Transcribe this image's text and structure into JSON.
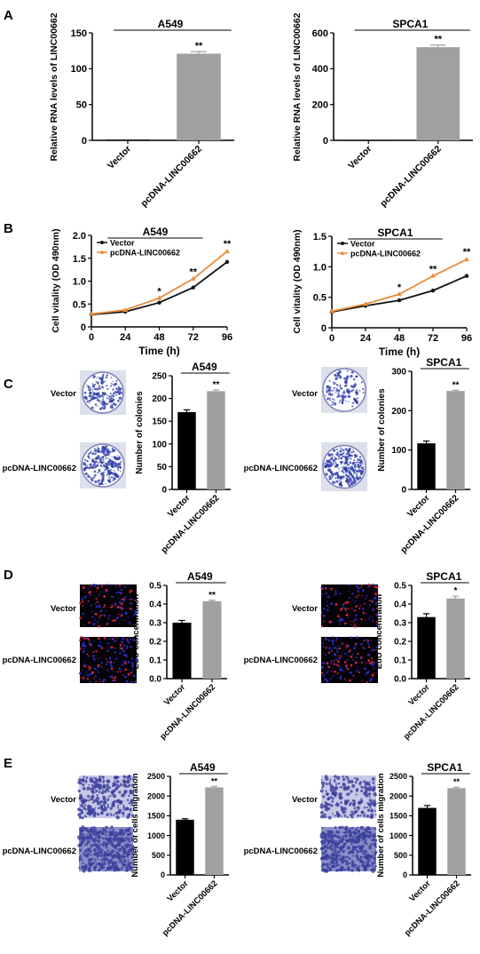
{
  "panels": {
    "A": "A",
    "B": "B",
    "C": "C",
    "D": "D",
    "E": "E"
  },
  "colors": {
    "vector_bar": "#000000",
    "pcdna_bar": "#a0a0a0",
    "vector_line": "#111111",
    "pcdna_line": "#e98b3a",
    "colony_plate": "#ffffff",
    "colony_dots": "#2a3aa8",
    "edu_bg": "#060308",
    "edu_dots_blue": "#2b2fd8",
    "edu_dots_red": "#e8283c",
    "transwell_bg": "#c6c8e6",
    "transwell_cells": "#3a3f9c"
  },
  "images": {
    "vector_label": "Vector",
    "pcdna_label": "pcDNA-LINC00662"
  },
  "chart_data": [
    {
      "id": "A_A549",
      "type": "bar",
      "panel": "A",
      "title": "A549",
      "ylabel": "Relative RNA levels of LINC00662",
      "categories": [
        "Vector",
        "pcDNA-LINC00662"
      ],
      "values": [
        1,
        121
      ],
      "errors": [
        0,
        3
      ],
      "ylim": [
        0,
        150
      ],
      "yticks": [
        "0",
        "50",
        "100",
        "150"
      ],
      "yticks_v": [
        0,
        50,
        100,
        150
      ],
      "annotations": [
        "",
        "**"
      ]
    },
    {
      "id": "A_SPCA1",
      "type": "bar",
      "panel": "A",
      "title": "SPCA1",
      "ylabel": "Relative RNA levels of LINC00662",
      "categories": [
        "Vector",
        "pcDNA-LINC00662"
      ],
      "values": [
        1,
        520
      ],
      "errors": [
        0,
        12
      ],
      "ylim": [
        0,
        600
      ],
      "yticks": [
        "0",
        "200",
        "400",
        "600"
      ],
      "yticks_v": [
        0,
        200,
        400,
        600
      ],
      "annotations": [
        "",
        "**"
      ]
    },
    {
      "id": "B_A549",
      "type": "line",
      "panel": "B",
      "title": "A549",
      "ylabel": "Cell vitality (OD 490nm)",
      "xlabel": "Time (h)",
      "x": [
        0,
        24,
        48,
        72,
        96
      ],
      "xticks": [
        "0",
        "24",
        "48",
        "72",
        "96"
      ],
      "ylim": [
        0,
        2.0
      ],
      "yticks": [
        "0",
        "0.5",
        "1.0",
        "1.5",
        "2.0"
      ],
      "yticks_v": [
        0,
        0.5,
        1.0,
        1.5,
        2.0
      ],
      "legend": "top-left",
      "series": [
        {
          "name": "Vector",
          "values": [
            0.27,
            0.33,
            0.53,
            0.86,
            1.42
          ],
          "errors": [
            0.01,
            0.01,
            0.02,
            0.02,
            0.04
          ]
        },
        {
          "name": "pcDNA-LINC00662",
          "values": [
            0.28,
            0.37,
            0.63,
            1.05,
            1.65
          ],
          "errors": [
            0.01,
            0.01,
            0.02,
            0.03,
            0.04
          ]
        }
      ],
      "annotations": [
        "",
        "",
        "*",
        "**",
        "**"
      ]
    },
    {
      "id": "B_SPCA1",
      "type": "line",
      "panel": "B",
      "title": "SPCA1",
      "ylabel": "Cell vitality (OD 490nm)",
      "xlabel": "Time (h)",
      "x": [
        0,
        24,
        48,
        72,
        96
      ],
      "xticks": [
        "0",
        "24",
        "48",
        "72",
        "96"
      ],
      "ylim": [
        0,
        1.5
      ],
      "yticks": [
        "0",
        "0.5",
        "1.0",
        "1.5"
      ],
      "yticks_v": [
        0,
        0.5,
        1.0,
        1.5
      ],
      "legend": "top-left",
      "series": [
        {
          "name": "Vector",
          "values": [
            0.26,
            0.36,
            0.45,
            0.61,
            0.85
          ],
          "errors": [
            0.01,
            0.01,
            0.01,
            0.02,
            0.03
          ]
        },
        {
          "name": "pcDNA-LINC00662",
          "values": [
            0.27,
            0.39,
            0.55,
            0.85,
            1.12
          ],
          "errors": [
            0.01,
            0.01,
            0.02,
            0.02,
            0.03
          ]
        }
      ],
      "annotations": [
        "",
        "",
        "*",
        "**",
        "**"
      ]
    },
    {
      "id": "C_A549",
      "type": "bar",
      "panel": "C",
      "title": "A549",
      "ylabel": "Number of colonies",
      "categories": [
        "Vector",
        "pcDNA-LINC00662"
      ],
      "values": [
        170,
        216
      ],
      "errors": [
        5,
        3
      ],
      "ylim": [
        0,
        250
      ],
      "yticks": [
        "0",
        "50",
        "100",
        "150",
        "200",
        "250"
      ],
      "yticks_v": [
        0,
        50,
        100,
        150,
        200,
        250
      ],
      "annotations": [
        "",
        "**"
      ]
    },
    {
      "id": "C_SPCA1",
      "type": "bar",
      "panel": "C",
      "title": "SPCA1",
      "ylabel": "Number of colonies",
      "categories": [
        "Vector",
        "pcDNA-LINC00662"
      ],
      "values": [
        117,
        250
      ],
      "errors": [
        6,
        2
      ],
      "ylim": [
        0,
        300
      ],
      "yticks": [
        "0",
        "100",
        "200",
        "300"
      ],
      "yticks_v": [
        0,
        100,
        200,
        300
      ],
      "annotations": [
        "",
        "**"
      ]
    },
    {
      "id": "D_A549",
      "type": "bar",
      "panel": "D",
      "title": "A549",
      "ylabel": "EdU concentration",
      "categories": [
        "Vector",
        "pcDNA-LINC00662"
      ],
      "values": [
        0.3,
        0.415
      ],
      "errors": [
        0.012,
        0.005
      ],
      "ylim": [
        0,
        0.5
      ],
      "yticks": [
        "0.0",
        "0.1",
        "0.2",
        "0.3",
        "0.4",
        "0.5"
      ],
      "yticks_v": [
        0,
        0.1,
        0.2,
        0.3,
        0.4,
        0.5
      ],
      "annotations": [
        "",
        "**"
      ]
    },
    {
      "id": "D_SPCA1",
      "type": "bar",
      "panel": "D",
      "title": "SPCA1",
      "ylabel": "EdU concentration",
      "categories": [
        "Vector",
        "pcDNA-LINC00662"
      ],
      "values": [
        0.33,
        0.43
      ],
      "errors": [
        0.018,
        0.012
      ],
      "ylim": [
        0,
        0.5
      ],
      "yticks": [
        "0.0",
        "0.1",
        "0.2",
        "0.3",
        "0.4",
        "0.5"
      ],
      "yticks_v": [
        0,
        0.1,
        0.2,
        0.3,
        0.4,
        0.5
      ],
      "annotations": [
        "",
        "*"
      ]
    },
    {
      "id": "E_A549",
      "type": "bar",
      "panel": "E",
      "title": "A549",
      "ylabel": "Number of cells migration",
      "categories": [
        "Vector",
        "pcDNA-LINC00662"
      ],
      "values": [
        1400,
        2220
      ],
      "errors": [
        25,
        25
      ],
      "ylim": [
        0,
        2500
      ],
      "yticks": [
        "0",
        "500",
        "1000",
        "1500",
        "2000",
        "2500"
      ],
      "yticks_v": [
        0,
        500,
        1000,
        1500,
        2000,
        2500
      ],
      "annotations": [
        "",
        "**"
      ]
    },
    {
      "id": "E_SPCA1",
      "type": "bar",
      "panel": "E",
      "title": "SPCA1",
      "ylabel": "Number of cells migration",
      "categories": [
        "Vector",
        "pcDNA-LINC00662"
      ],
      "values": [
        1700,
        2200
      ],
      "errors": [
        60,
        25
      ],
      "ylim": [
        0,
        2500
      ],
      "yticks": [
        "0",
        "500",
        "1000",
        "1500",
        "2000",
        "2500"
      ],
      "yticks_v": [
        0,
        500,
        1000,
        1500,
        2000,
        2500
      ],
      "annotations": [
        "",
        "**"
      ]
    }
  ]
}
